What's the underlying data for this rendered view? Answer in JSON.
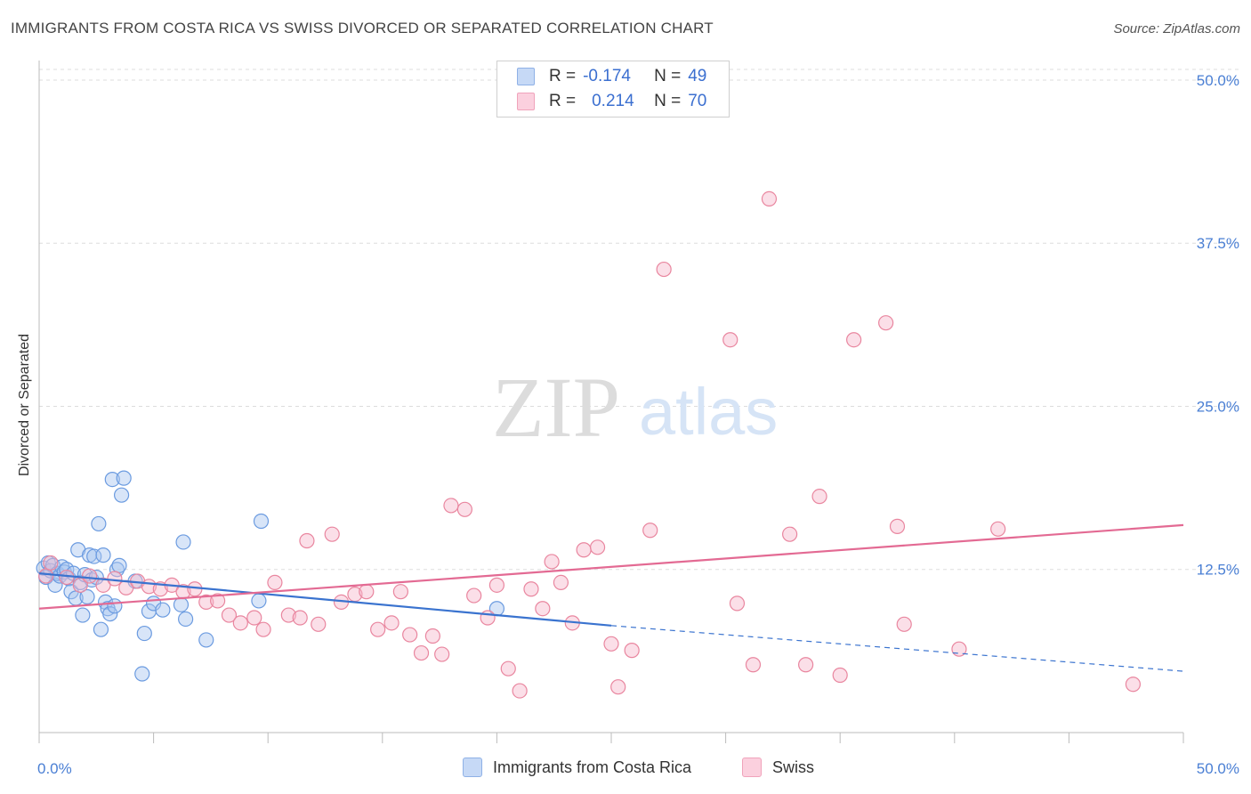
{
  "header": {
    "title": "IMMIGRANTS FROM COSTA RICA VS SWISS DIVORCED OR SEPARATED CORRELATION CHART",
    "source": "Source: ZipAtlas.com"
  },
  "watermark": {
    "zip": "ZIP",
    "atlas": "atlas"
  },
  "legend": {
    "rows": [
      {
        "r_label": "R =",
        "r_value": "-0.174",
        "n_label": "N =",
        "n_value": "49",
        "color": "#a9c6f0"
      },
      {
        "r_label": "R =",
        "r_value": "0.214",
        "n_label": "N =",
        "n_value": "70",
        "color": "#f6b8cb"
      }
    ]
  },
  "bottom_legend": [
    {
      "label": "Immigrants from Costa Rica",
      "color": "#a9c6f0"
    },
    {
      "label": "Swiss",
      "color": "#f6b8cb"
    }
  ],
  "chart_data": {
    "type": "scatter",
    "ylabel": "Divorced or Separated",
    "xlim": [
      0,
      50
    ],
    "ylim": [
      0,
      51.5
    ],
    "x_tick_labels": [
      {
        "value": 0,
        "label": "0.0%"
      },
      {
        "value": 50,
        "label": "50.0%"
      }
    ],
    "y_tick_labels": [
      {
        "value": 12.5,
        "label": "12.5%"
      },
      {
        "value": 25.0,
        "label": "25.0%"
      },
      {
        "value": 37.5,
        "label": "37.5%"
      },
      {
        "value": 50.0,
        "label": "50.0%"
      }
    ],
    "grid": "horizontal dashed",
    "series": [
      {
        "name": "Immigrants from Costa Rica",
        "color": "#6b9be0",
        "fill": "#a9c6f0",
        "trend": {
          "x0": 0,
          "y0": 12.2,
          "x1": 25,
          "y1": 8.2,
          "dashed_to_x": 50,
          "dashed_to_y": 4.7,
          "color": "#3a73cf"
        },
        "points": [
          [
            0.2,
            12.6
          ],
          [
            0.3,
            11.9
          ],
          [
            0.4,
            13.0
          ],
          [
            0.5,
            12.4
          ],
          [
            0.6,
            12.8
          ],
          [
            0.7,
            11.3
          ],
          [
            0.8,
            12.2
          ],
          [
            0.9,
            12.0
          ],
          [
            1.0,
            12.7
          ],
          [
            1.1,
            12.3
          ],
          [
            1.2,
            12.5
          ],
          [
            1.3,
            11.8
          ],
          [
            1.4,
            10.8
          ],
          [
            1.5,
            12.2
          ],
          [
            1.6,
            10.3
          ],
          [
            1.7,
            14.0
          ],
          [
            1.8,
            11.5
          ],
          [
            1.9,
            9.0
          ],
          [
            2.0,
            12.1
          ],
          [
            2.1,
            10.4
          ],
          [
            2.2,
            13.6
          ],
          [
            2.3,
            11.7
          ],
          [
            2.4,
            13.5
          ],
          [
            2.5,
            11.9
          ],
          [
            2.6,
            16.0
          ],
          [
            2.7,
            7.9
          ],
          [
            2.8,
            13.6
          ],
          [
            2.9,
            10.0
          ],
          [
            3.0,
            9.5
          ],
          [
            3.1,
            9.1
          ],
          [
            3.2,
            19.4
          ],
          [
            3.3,
            9.7
          ],
          [
            3.4,
            12.5
          ],
          [
            3.5,
            12.8
          ],
          [
            3.6,
            18.2
          ],
          [
            3.7,
            19.5
          ],
          [
            4.2,
            11.6
          ],
          [
            4.5,
            4.5
          ],
          [
            4.6,
            7.6
          ],
          [
            4.8,
            9.3
          ],
          [
            5.0,
            9.9
          ],
          [
            5.4,
            9.4
          ],
          [
            6.2,
            9.8
          ],
          [
            6.3,
            14.6
          ],
          [
            6.4,
            8.7
          ],
          [
            7.3,
            7.1
          ],
          [
            9.6,
            10.1
          ],
          [
            9.7,
            16.2
          ],
          [
            20.0,
            9.5
          ]
        ]
      },
      {
        "name": "Swiss",
        "color": "#e9869f",
        "fill": "#f6b8cb",
        "trend": {
          "x0": 0,
          "y0": 9.5,
          "x1": 50,
          "y1": 15.9,
          "color": "#e36a93"
        },
        "points": [
          [
            0.3,
            12.0
          ],
          [
            0.5,
            13.0
          ],
          [
            1.2,
            11.9
          ],
          [
            1.8,
            11.3
          ],
          [
            2.2,
            12.0
          ],
          [
            2.8,
            11.3
          ],
          [
            3.3,
            11.8
          ],
          [
            3.8,
            11.1
          ],
          [
            4.3,
            11.6
          ],
          [
            4.8,
            11.2
          ],
          [
            5.3,
            11.0
          ],
          [
            5.8,
            11.3
          ],
          [
            6.3,
            10.8
          ],
          [
            6.8,
            11.0
          ],
          [
            7.3,
            10.0
          ],
          [
            7.8,
            10.1
          ],
          [
            8.3,
            9.0
          ],
          [
            8.8,
            8.4
          ],
          [
            9.4,
            8.8
          ],
          [
            9.8,
            7.9
          ],
          [
            10.3,
            11.5
          ],
          [
            10.9,
            9.0
          ],
          [
            11.4,
            8.8
          ],
          [
            11.7,
            14.7
          ],
          [
            12.2,
            8.3
          ],
          [
            12.8,
            15.2
          ],
          [
            13.2,
            10.0
          ],
          [
            13.8,
            10.6
          ],
          [
            14.3,
            10.8
          ],
          [
            14.8,
            7.9
          ],
          [
            15.4,
            8.4
          ],
          [
            15.8,
            10.8
          ],
          [
            16.2,
            7.5
          ],
          [
            16.7,
            6.1
          ],
          [
            17.2,
            7.4
          ],
          [
            17.6,
            6.0
          ],
          [
            18.0,
            17.4
          ],
          [
            18.6,
            17.1
          ],
          [
            19.0,
            10.5
          ],
          [
            19.6,
            8.8
          ],
          [
            20.0,
            11.3
          ],
          [
            20.5,
            4.9
          ],
          [
            21.0,
            3.2
          ],
          [
            21.5,
            11.0
          ],
          [
            22.0,
            9.5
          ],
          [
            22.4,
            13.1
          ],
          [
            22.8,
            11.5
          ],
          [
            23.3,
            8.4
          ],
          [
            23.8,
            14.0
          ],
          [
            24.4,
            14.2
          ],
          [
            25.0,
            6.8
          ],
          [
            25.3,
            3.5
          ],
          [
            25.9,
            6.3
          ],
          [
            26.7,
            15.5
          ],
          [
            27.3,
            35.5
          ],
          [
            30.2,
            30.1
          ],
          [
            30.5,
            9.9
          ],
          [
            31.2,
            5.2
          ],
          [
            31.9,
            40.9
          ],
          [
            32.8,
            15.2
          ],
          [
            33.5,
            5.2
          ],
          [
            34.1,
            18.1
          ],
          [
            35.0,
            4.4
          ],
          [
            35.6,
            30.1
          ],
          [
            37.0,
            31.4
          ],
          [
            37.5,
            15.8
          ],
          [
            37.8,
            8.3
          ],
          [
            40.2,
            6.4
          ],
          [
            41.9,
            15.6
          ],
          [
            47.8,
            3.7
          ]
        ]
      }
    ]
  }
}
